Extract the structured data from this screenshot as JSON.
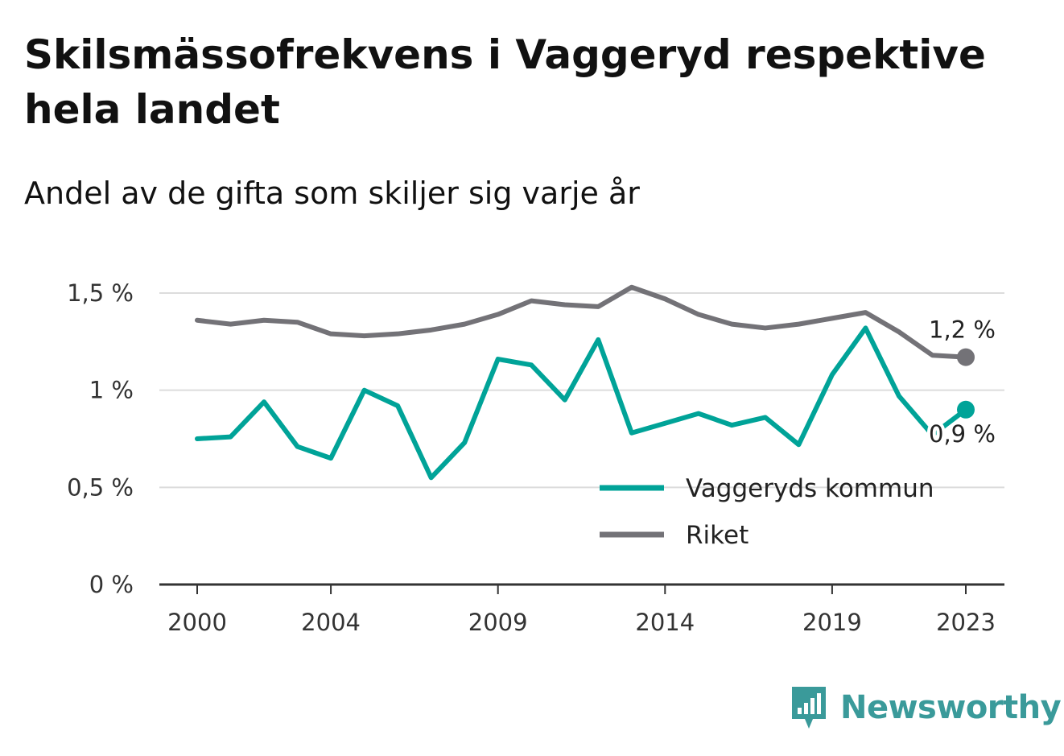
{
  "title": "Skilsmässofrekvens i Vaggeryd respektive hela landet",
  "subtitle": "Andel av de gifta som skiljer sig varje år",
  "brand": "Newsworthy",
  "chart_data": {
    "type": "line",
    "x": [
      2000,
      2001,
      2002,
      2003,
      2004,
      2005,
      2006,
      2007,
      2008,
      2009,
      2010,
      2011,
      2012,
      2013,
      2014,
      2015,
      2016,
      2017,
      2018,
      2019,
      2020,
      2021,
      2022,
      2023
    ],
    "x_ticks": [
      2000,
      2004,
      2009,
      2014,
      2019,
      2023
    ],
    "x_tick_labels": [
      "2000",
      "2004",
      "2009",
      "2014",
      "2019",
      "2023"
    ],
    "y_ticks": [
      0,
      0.5,
      1,
      1.5
    ],
    "y_tick_labels": [
      "0 %",
      "0,5 %",
      "1 %",
      "1,5 %"
    ],
    "ylim": [
      0,
      1.55
    ],
    "grid": true,
    "legend_position": "bottom-right",
    "series": [
      {
        "name": "Vaggeryds kommun",
        "color": "#00a398",
        "values": [
          0.75,
          0.76,
          0.94,
          0.71,
          0.65,
          1.0,
          0.92,
          0.55,
          0.73,
          1.16,
          1.13,
          0.95,
          1.26,
          0.78,
          0.83,
          0.88,
          0.82,
          0.86,
          0.72,
          1.08,
          1.32,
          0.97,
          0.77,
          0.9
        ],
        "end_label": "0,9 %"
      },
      {
        "name": "Riket",
        "color": "#737277",
        "values": [
          1.36,
          1.34,
          1.36,
          1.35,
          1.29,
          1.28,
          1.29,
          1.31,
          1.34,
          1.39,
          1.46,
          1.44,
          1.43,
          1.53,
          1.47,
          1.39,
          1.34,
          1.32,
          1.34,
          1.37,
          1.4,
          1.3,
          1.18,
          1.17
        ],
        "end_label": "1,2 %"
      }
    ]
  }
}
